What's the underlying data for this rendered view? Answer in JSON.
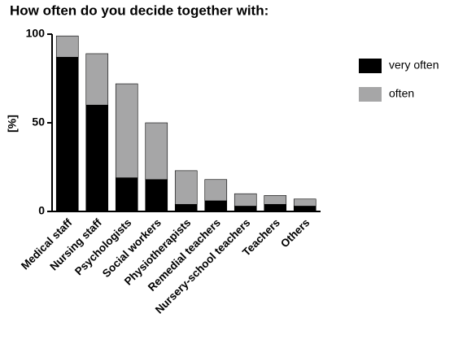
{
  "chart_data": {
    "type": "bar",
    "stacked": true,
    "title": "How often do you decide together with:",
    "y_label": "[%]",
    "categories": [
      "Medical staff",
      "Nursing staff",
      "Psychologists",
      "Social workers",
      "Physiotherapists",
      "Remedial teachers",
      "Nursery-school teachers",
      "Teachers",
      "Others"
    ],
    "series": [
      {
        "name": "very often",
        "color": "#000000",
        "values": [
          87,
          60,
          19,
          18,
          4,
          6,
          3,
          4,
          3
        ]
      },
      {
        "name": "often",
        "color": "#a6a6a7",
        "values": [
          12,
          29,
          53,
          32,
          19,
          12,
          7,
          5,
          4
        ]
      }
    ],
    "ylim": [
      0,
      100
    ],
    "yticks": [
      0,
      50,
      100
    ],
    "grid": false,
    "legend": "right"
  }
}
